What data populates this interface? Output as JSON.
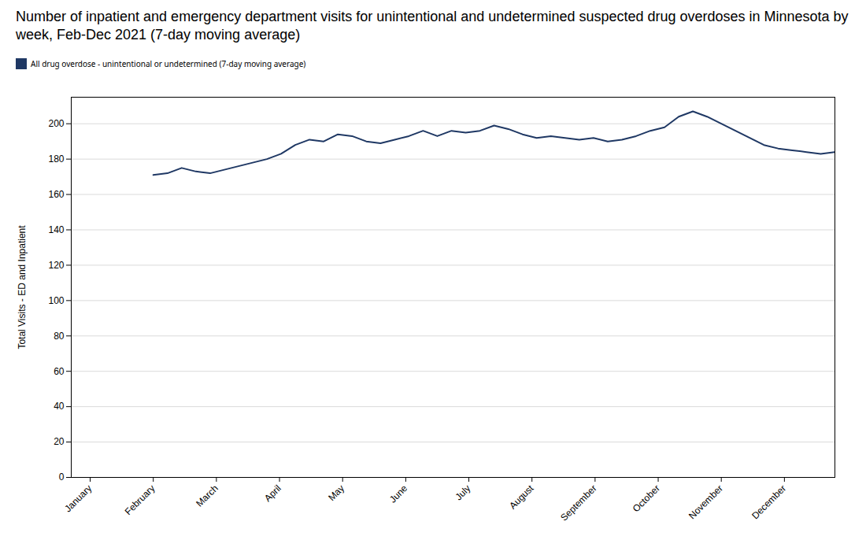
{
  "chart_data": {
    "type": "line",
    "title": "Number of inpatient and emergency department visits for unintentional and undetermined suspected drug overdoses in Minnesota by week, Feb-Dec 2021 (7-day moving average)",
    "ylabel": "Total Visits - ED and Inpatient",
    "x": [
      1,
      1.225,
      1.45,
      1.675,
      1.9,
      2.125,
      2.35,
      2.575,
      2.8,
      3.025,
      3.25,
      3.475,
      3.7,
      3.925,
      4.15,
      4.375,
      4.6,
      4.825,
      5.05,
      5.275,
      5.5,
      5.725,
      5.95,
      6.175,
      6.4,
      6.625,
      6.85,
      7.075,
      7.3,
      7.525,
      7.75,
      7.975,
      8.2,
      8.425,
      8.65,
      8.875,
      9.1,
      9.325,
      9.55,
      9.775,
      10,
      10.225,
      10.45,
      10.675,
      10.9,
      11.125,
      11.35,
      11.575,
      11.8
    ],
    "series": [
      {
        "name": "All drug overdose - unintentional or undetermined (7-day moving average)",
        "color": "#1F3864",
        "values": [
          171,
          172,
          175,
          173,
          172,
          174,
          176,
          178,
          180,
          183,
          188,
          191,
          190,
          194,
          193,
          190,
          189,
          191,
          193,
          196,
          193,
          196,
          195,
          196,
          199,
          197,
          194,
          192,
          193,
          192,
          191,
          192,
          190,
          191,
          193,
          196,
          198,
          204,
          207,
          204,
          200,
          196,
          192,
          188,
          186,
          185,
          184,
          183,
          184
        ]
      }
    ],
    "xlim": [
      -0.3,
      11.8
    ],
    "xticks": [
      {
        "value": 0,
        "label": "January"
      },
      {
        "value": 1,
        "label": "February"
      },
      {
        "value": 2,
        "label": "March"
      },
      {
        "value": 3,
        "label": "April"
      },
      {
        "value": 4,
        "label": "May"
      },
      {
        "value": 5,
        "label": "June"
      },
      {
        "value": 6,
        "label": "July"
      },
      {
        "value": 7,
        "label": "August"
      },
      {
        "value": 8,
        "label": "September"
      },
      {
        "value": 9,
        "label": "October"
      },
      {
        "value": 10,
        "label": "November"
      },
      {
        "value": 11,
        "label": "December"
      }
    ],
    "ylim": [
      0,
      215
    ],
    "yticks": [
      0,
      20,
      40,
      60,
      80,
      100,
      120,
      140,
      160,
      180,
      200
    ],
    "grid": true,
    "legend": "upper left"
  }
}
